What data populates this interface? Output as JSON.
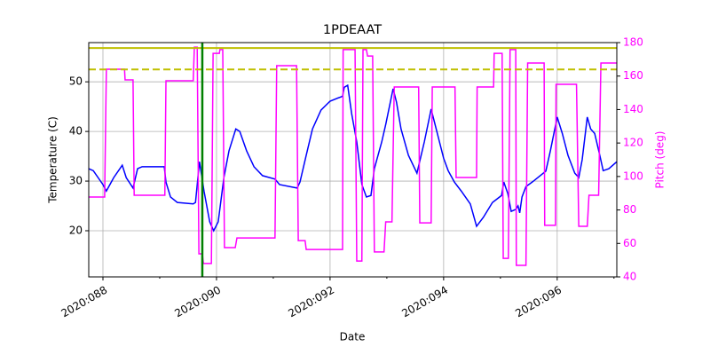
{
  "chart_data": {
    "type": "line",
    "title": "1PDEAAT",
    "xlabel": "Date",
    "ylabel": "Temperature (C)",
    "y2label": "Pitch (deg)",
    "xlim": [
      87.75,
      97.05
    ],
    "xticks": [
      {
        "value": 88,
        "label": "2020:088"
      },
      {
        "value": 90,
        "label": "2020:090"
      },
      {
        "value": 92,
        "label": "2020:092"
      },
      {
        "value": 94,
        "label": "2020:094"
      },
      {
        "value": 96,
        "label": "2020:096"
      }
    ],
    "xminorticks": [
      89,
      91,
      93,
      95,
      97
    ],
    "ylim": [
      10.7,
      57.9
    ],
    "yticks": [
      20,
      30,
      40,
      50
    ],
    "y2lim": [
      40,
      180
    ],
    "y2ticks": [
      40,
      60,
      80,
      100,
      120,
      140,
      160,
      180
    ],
    "y2color": "#ff00ff",
    "grid": true,
    "hlines": [
      {
        "value": 56.8,
        "color": "#bfbf00",
        "dashed": false
      },
      {
        "value": 52.5,
        "color": "#bfbf00",
        "dashed": true
      }
    ],
    "vlines": [
      {
        "value": 89.75,
        "color": "#008000"
      }
    ],
    "series": [
      {
        "color": "#0000ff",
        "x": [
          87.75,
          87.83,
          88.0,
          88.06,
          88.19,
          88.34,
          88.41,
          88.53,
          88.61,
          88.69,
          89.08,
          89.11,
          89.19,
          89.31,
          89.59,
          89.63,
          89.7,
          89.78,
          89.88,
          89.95,
          90.03,
          90.13,
          90.22,
          90.34,
          90.41,
          90.53,
          90.66,
          90.81,
          91.03,
          91.11,
          91.42,
          91.47,
          91.58,
          91.69,
          91.84,
          92.0,
          92.22,
          92.25,
          92.31,
          92.38,
          92.47,
          92.56,
          92.64,
          92.72,
          92.78,
          92.91,
          92.98,
          93.11,
          93.17,
          93.25,
          93.38,
          93.53,
          93.66,
          93.78,
          93.88,
          94.0,
          94.08,
          94.19,
          94.31,
          94.47,
          94.58,
          94.7,
          94.86,
          95.02,
          95.06,
          95.13,
          95.19,
          95.27,
          95.31,
          95.34,
          95.38,
          95.45,
          95.56,
          95.8,
          95.88,
          96.0,
          96.09,
          96.19,
          96.31,
          96.38,
          96.44,
          96.53,
          96.59,
          96.66,
          96.75,
          96.81,
          96.91,
          97.05
        ],
        "values": [
          32.5,
          32.1,
          29.3,
          28.0,
          30.7,
          33.2,
          30.7,
          28.6,
          32.5,
          32.9,
          32.9,
          29.8,
          26.8,
          25.7,
          25.4,
          25.7,
          33.9,
          28.0,
          21.8,
          20.0,
          21.8,
          30.7,
          36.1,
          40.5,
          40.0,
          36.1,
          32.9,
          31.1,
          30.4,
          29.3,
          28.6,
          29.8,
          35.2,
          40.5,
          44.3,
          46.1,
          47.1,
          48.9,
          49.3,
          43.6,
          37.9,
          29.3,
          26.8,
          27.1,
          32.5,
          37.9,
          41.4,
          48.6,
          45.9,
          40.5,
          35.2,
          31.6,
          37.9,
          44.5,
          40.0,
          34.6,
          32.1,
          29.8,
          28.0,
          25.4,
          20.9,
          22.7,
          25.7,
          27.1,
          29.8,
          27.5,
          23.9,
          24.3,
          25.0,
          23.6,
          26.8,
          28.9,
          29.8,
          32.0,
          36.1,
          42.9,
          39.6,
          35.2,
          31.6,
          30.7,
          34.3,
          42.9,
          40.5,
          39.6,
          35.2,
          32.1,
          32.5,
          33.9
        ]
      },
      {
        "color": "#ff00ff",
        "axis": "y2",
        "x": [
          87.75,
          88.03,
          88.06,
          88.38,
          88.39,
          88.53,
          88.55,
          89.09,
          89.11,
          89.59,
          89.61,
          89.66,
          89.69,
          89.75,
          89.77,
          89.91,
          89.94,
          90.05,
          90.06,
          90.11,
          90.14,
          90.33,
          90.36,
          91.03,
          91.06,
          91.41,
          91.44,
          91.56,
          91.58,
          92.22,
          92.23,
          92.44,
          92.47,
          92.56,
          92.58,
          92.64,
          92.66,
          92.75,
          92.78,
          92.95,
          92.98,
          93.09,
          93.13,
          93.56,
          93.58,
          93.78,
          93.8,
          94.2,
          94.22,
          94.58,
          94.59,
          94.88,
          94.89,
          95.03,
          95.05,
          95.14,
          95.17,
          95.27,
          95.28,
          95.45,
          95.48,
          95.77,
          95.78,
          95.97,
          95.98,
          96.34,
          96.38,
          96.53,
          96.56,
          96.73,
          96.77,
          97.05
        ],
        "values": [
          87.7,
          87.7,
          164.1,
          164.1,
          157.7,
          157.7,
          88.8,
          88.8,
          157.2,
          157.2,
          177.3,
          177.3,
          53.8,
          53.8,
          48.0,
          48.0,
          173.6,
          173.6,
          175.8,
          175.8,
          57.5,
          57.5,
          63.3,
          63.3,
          166.2,
          166.2,
          61.7,
          61.7,
          56.4,
          56.4,
          175.8,
          175.8,
          49.5,
          49.5,
          175.8,
          175.8,
          172.0,
          172.0,
          54.9,
          54.9,
          72.9,
          72.9,
          153.5,
          153.5,
          72.3,
          72.3,
          153.5,
          153.5,
          99.4,
          99.4,
          153.5,
          153.5,
          173.6,
          173.6,
          51.1,
          51.1,
          175.8,
          175.8,
          46.9,
          46.9,
          167.8,
          167.8,
          70.8,
          70.8,
          155.1,
          155.1,
          70.2,
          70.2,
          88.8,
          88.8,
          167.8,
          167.8
        ]
      }
    ]
  }
}
